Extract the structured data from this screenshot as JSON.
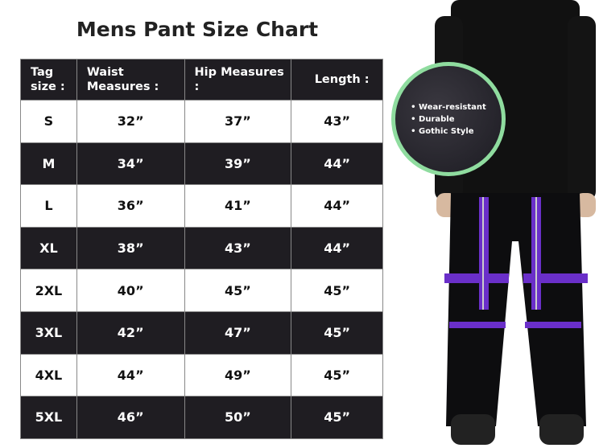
{
  "title": "Mens Pant Size Chart",
  "headers": [
    "Tag size :",
    "Waist Measures :",
    "Hip Measures :",
    "Length :"
  ],
  "rows": [
    [
      "S",
      "32”",
      "37”",
      "43”"
    ],
    [
      "M",
      "34”",
      "39”",
      "44”"
    ],
    [
      "L",
      "36”",
      "41”",
      "44”"
    ],
    [
      "XL",
      "38”",
      "43”",
      "44”"
    ],
    [
      "2XL",
      "40”",
      "45”",
      "45”"
    ],
    [
      "3XL",
      "42”",
      "47”",
      "45”"
    ],
    [
      "4XL",
      "44”",
      "49”",
      "45”"
    ],
    [
      "5XL",
      "46”",
      "50”",
      "45”"
    ]
  ],
  "features": [
    "Wear-resistant",
    "Durable",
    "Gothic Style"
  ],
  "colors": {
    "dark": "#1f1d22",
    "badge_border": "#8fdc9f",
    "strap": "#6a2fc9"
  }
}
